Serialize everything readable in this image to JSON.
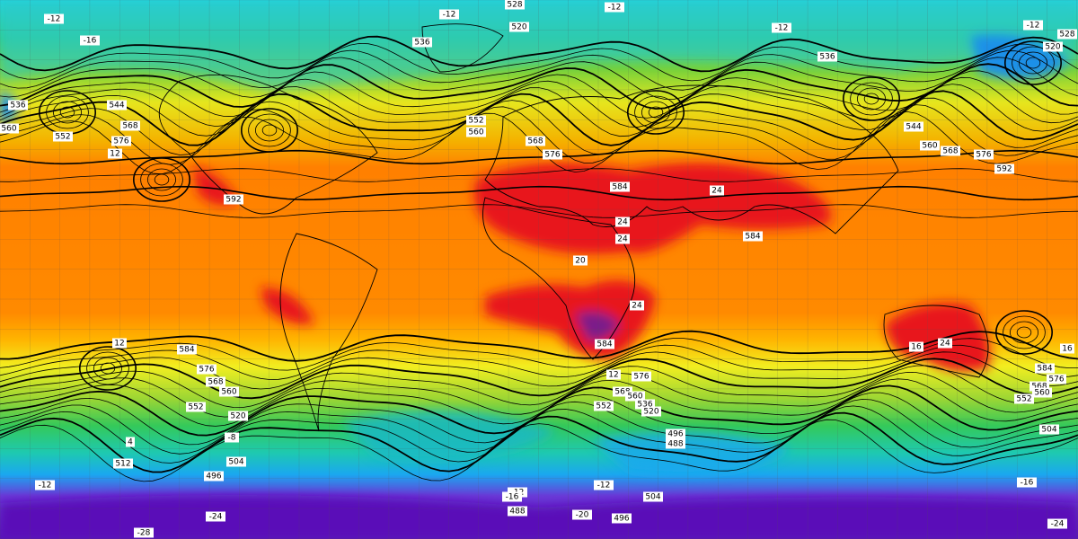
{
  "map": {
    "height_labels": [
      528,
      520,
      536,
      536,
      544,
      552,
      560,
      568,
      576,
      592,
      552,
      560,
      568,
      576,
      584,
      584,
      584,
      576,
      568,
      560,
      552,
      520,
      512,
      504,
      496,
      584,
      576,
      568,
      560,
      552,
      536,
      520,
      496,
      488,
      504,
      488,
      496,
      536,
      528,
      520,
      544,
      560,
      568,
      576,
      592,
      584,
      576,
      568,
      560,
      552,
      504
    ],
    "temperature_labels": [
      -12,
      -12,
      -12,
      -12,
      -12,
      -16,
      12,
      24,
      24,
      24,
      20,
      24,
      16,
      24,
      12,
      -12,
      -12,
      -16,
      -28,
      -24,
      -20,
      -8,
      4,
      -12,
      16,
      -16,
      -24,
      12
    ]
  }
}
